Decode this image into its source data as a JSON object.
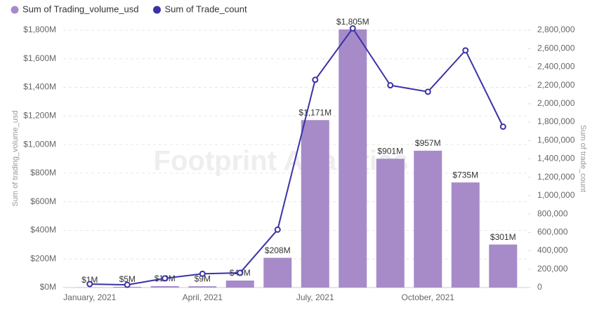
{
  "chart_data": {
    "type": "combo",
    "watermark": "Footprint Analytics",
    "y_label": "Sum of trading_volume_usd",
    "y2_label": "Sum of trade_count",
    "categories": [
      "January, 2021",
      null,
      null,
      "April, 2021",
      null,
      null,
      "July, 2021",
      null,
      null,
      "October, 2021",
      null,
      null
    ],
    "series": [
      {
        "name": "Sum of Trading_volume_usd",
        "type": "bar",
        "color": "#a68bc8",
        "values": [
          1,
          5,
          10,
          9,
          49,
          208,
          1171,
          1805,
          901,
          957,
          735,
          301
        ],
        "value_labels": [
          "$1M",
          "$5M",
          "$10M",
          "$9M",
          "$49M",
          "$208M",
          "$1,171M",
          "$1,805M",
          "$901M",
          "$957M",
          "$735M",
          "$301M"
        ]
      },
      {
        "name": "Sum of Trade_count",
        "type": "line",
        "axis": "y2",
        "color": "#3a32a6",
        "values": [
          38000,
          30000,
          100000,
          150000,
          160000,
          630000,
          2260000,
          2820000,
          2200000,
          2130000,
          2580000,
          1750000
        ]
      }
    ],
    "ylim": [
      0,
      1800
    ],
    "yticks": [
      {
        "value": 0,
        "label": "$0M"
      },
      {
        "value": 200,
        "label": "$200M"
      },
      {
        "value": 400,
        "label": "$400M"
      },
      {
        "value": 600,
        "label": "$600M"
      },
      {
        "value": 800,
        "label": "$800M"
      },
      {
        "value": 1000,
        "label": "$1,000M"
      },
      {
        "value": 1200,
        "label": "$1,200M"
      },
      {
        "value": 1400,
        "label": "$1,400M"
      },
      {
        "value": 1600,
        "label": "$1,600M"
      },
      {
        "value": 1800,
        "label": "$1,800M"
      }
    ],
    "y2lim": [
      0,
      2800000
    ],
    "y2ticks": [
      0,
      {
        "value": 200000,
        "label": "200,000"
      },
      {
        "value": 400000,
        "label": "400,000"
      },
      {
        "value": 600000,
        "label": "600,000"
      },
      {
        "value": 800000,
        "label": "800,000"
      },
      {
        "value": 1000000,
        "label": "1,000,000"
      },
      {
        "value": 1200000,
        "label": "1,200,000"
      },
      {
        "value": 1400000,
        "label": "1,400,000"
      },
      {
        "value": 1600000,
        "label": "1,600,000"
      },
      {
        "value": 1800000,
        "label": "1,800,000"
      },
      {
        "value": 2000000,
        "label": "2,000,000"
      },
      {
        "value": 2200000,
        "label": "2,200,000"
      },
      {
        "value": 2400000,
        "label": "2,400,000"
      },
      {
        "value": 2600000,
        "label": "2,600,000"
      },
      {
        "value": 2800000,
        "label": "2,800,000"
      }
    ],
    "grid": true
  }
}
